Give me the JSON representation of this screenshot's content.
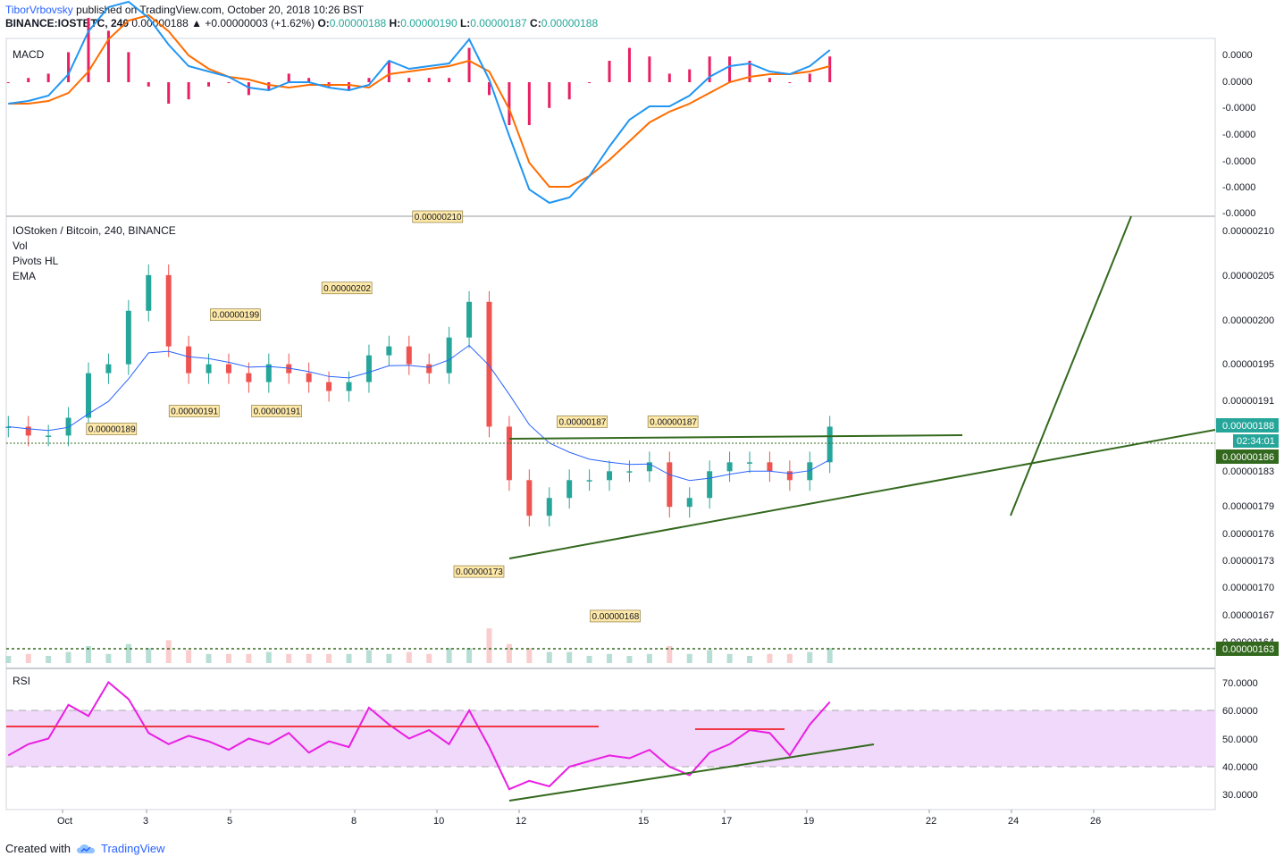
{
  "header": {
    "author": "TiborVrbovsky",
    "published_text": "published on TradingView.com, October 20, 2018 10:26 BST",
    "symbol": "BINANCE:IOSTBTC, 240",
    "last": "0.00000188",
    "change": "▲ +0.00000003 (+1.62%)",
    "o_label": "O:",
    "o_val": "0.00000188",
    "h_label": "H:",
    "h_val": "0.00000190",
    "l_label": "L:",
    "l_val": "0.00000187",
    "c_label": "C:",
    "c_val": "0.00000188"
  },
  "footer": {
    "created_with": "Created with",
    "brand": "TradingView"
  },
  "colors": {
    "up": "#26a69a",
    "down": "#ef5350",
    "macd": "#2196f3",
    "signal": "#ff6d00",
    "hist": "#e91e63",
    "rsi": "#e91ee3",
    "trend": "#33691e",
    "rsi_band": "#f0d9fa"
  },
  "chart_data": [
    {
      "type": "line",
      "title": "MACD",
      "y_tick_labels": [
        "0.0000",
        "0.0000",
        "-0.0000",
        "-0.0000",
        "-0.0000",
        "-0.0000",
        "-0.0000"
      ],
      "series": [
        {
          "name": "MACD",
          "values": [
            -0.8,
            -0.7,
            -0.5,
            0.3,
            1.9,
            2.8,
            3.0,
            2.4,
            1.4,
            0.6,
            0.4,
            0.2,
            -0.2,
            -0.3,
            0.0,
            0.0,
            -0.2,
            -0.3,
            -0.1,
            0.8,
            0.5,
            0.6,
            0.7,
            1.6,
            0.1,
            -2.0,
            -4.0,
            -4.5,
            -4.3,
            -3.5,
            -2.4,
            -1.4,
            -0.9,
            -0.9,
            -0.5,
            0.2,
            0.6,
            0.7,
            0.4,
            0.3,
            0.6,
            1.2
          ]
        },
        {
          "name": "Signal",
          "values": [
            -0.8,
            -0.8,
            -0.7,
            -0.4,
            0.4,
            1.6,
            2.3,
            2.5,
            1.9,
            1.0,
            0.5,
            0.2,
            0.1,
            -0.1,
            -0.2,
            -0.1,
            -0.1,
            -0.1,
            -0.2,
            0.3,
            0.4,
            0.5,
            0.6,
            0.8,
            0.4,
            -1.0,
            -3.0,
            -3.9,
            -3.9,
            -3.5,
            -2.9,
            -2.2,
            -1.5,
            -1.1,
            -0.8,
            -0.4,
            0.0,
            0.2,
            0.3,
            0.3,
            0.4,
            0.6
          ]
        }
      ]
    },
    {
      "type": "candlestick",
      "title": "IOStoken / Bitcoin, 240, BINANCE",
      "indicators": [
        "Vol",
        "Pivots HL",
        "EMA"
      ],
      "y_tick_labels": [
        "0.00000210",
        "0.00000205",
        "0.00000200",
        "0.00000195",
        "0.00000191",
        "0.00000188",
        "0.00000186",
        "0.00000183",
        "0.00000179",
        "0.00000176",
        "0.00000173",
        "0.00000170",
        "0.00000167",
        "0.00000164",
        "0.00000163"
      ],
      "last_price": "0.00000188",
      "countdown": "02:34:01",
      "level_186": "0.00000186",
      "level_163": "0.00000163",
      "pivots": [
        {
          "label": "0.00000189",
          "type": "low",
          "x": 3.0
        },
        {
          "label": "0.00000191",
          "type": "low",
          "x": 5.0
        },
        {
          "label": "0.00000199",
          "type": "high",
          "x": 6.0
        },
        {
          "label": "0.00000191",
          "type": "low",
          "x": 7.0
        },
        {
          "label": "0.00000202",
          "type": "high",
          "x": 8.7
        },
        {
          "label": "0.00000210",
          "type": "high",
          "x": 10.9
        },
        {
          "label": "0.00000173",
          "type": "low",
          "x": 11.9
        },
        {
          "label": "0.00000187",
          "type": "high",
          "x": 14.4
        },
        {
          "label": "0.00000168",
          "type": "low",
          "x": 15.2
        },
        {
          "label": "0.00000187",
          "type": "high",
          "x": 16.6
        }
      ],
      "price": [
        1.88,
        1.87,
        1.87,
        1.89,
        1.94,
        1.95,
        2.01,
        2.05,
        1.97,
        1.94,
        1.95,
        1.94,
        1.93,
        1.95,
        1.94,
        1.93,
        1.92,
        1.93,
        1.96,
        1.97,
        1.95,
        1.94,
        1.98,
        2.02,
        1.88,
        1.82,
        1.78,
        1.8,
        1.82,
        1.82,
        1.83,
        1.83,
        1.84,
        1.79,
        1.8,
        1.83,
        1.84,
        1.84,
        1.83,
        1.82,
        1.84,
        1.88
      ]
    },
    {
      "type": "line",
      "title": "RSI",
      "y_tick_labels": [
        "70.0000",
        "60.0000",
        "50.0000",
        "40.0000",
        "30.0000"
      ],
      "x_tick_labels": [
        "Oct",
        "3",
        "5",
        "8",
        "10",
        "12",
        "15",
        "17",
        "19",
        "22",
        "24",
        "26"
      ],
      "band": [
        40,
        60
      ],
      "values": [
        44,
        48,
        50,
        62,
        58,
        70,
        64,
        52,
        48,
        51,
        49,
        46,
        50,
        48,
        52,
        45,
        49,
        47,
        61,
        55,
        50,
        53,
        48,
        60,
        47,
        32,
        35,
        33,
        40,
        42,
        44,
        43,
        46,
        40,
        37,
        45,
        48,
        53,
        52,
        44,
        55,
        63
      ]
    }
  ]
}
